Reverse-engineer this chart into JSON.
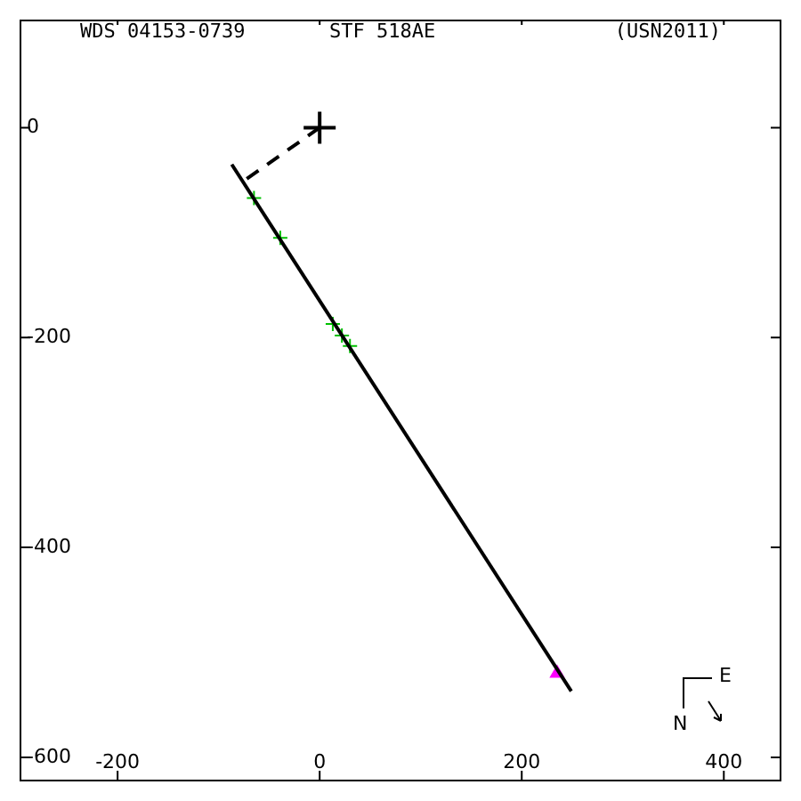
{
  "chart_data": {
    "type": "scatter",
    "title": "WDS 04153-0739",
    "subtitle": "STF 518AE",
    "annotations": [
      "(USN2011)",
      "E",
      "N"
    ],
    "xlim": [
      -297,
      457
    ],
    "ylim": [
      -623,
      103
    ],
    "xticks": [
      -200,
      0,
      200,
      400
    ],
    "yticks": [
      -600,
      -400,
      -200,
      0
    ],
    "grid": false,
    "legend": false,
    "series": [
      {
        "type": "line",
        "color": "#000000",
        "line_style": "solid",
        "marker": "none",
        "x": [
          -87,
          249
        ],
        "values": [
          -35,
          -537
        ]
      },
      {
        "type": "line",
        "color": "#000000",
        "line_style": "dashed",
        "marker": "none",
        "x": [
          0,
          -74
        ],
        "values": [
          0,
          -50
        ]
      },
      {
        "color": "#000000",
        "marker": "cross",
        "x": [
          0
        ],
        "values": [
          0
        ]
      },
      {
        "color": "#00c000",
        "marker": "cross",
        "x": [
          -65,
          -39,
          13,
          22,
          30
        ],
        "values": [
          -67,
          -105,
          -187,
          -198,
          -208
        ]
      },
      {
        "color": "#ff00ff",
        "marker": "triangle",
        "x": [
          235
        ],
        "values": [
          -520
        ]
      }
    ]
  }
}
